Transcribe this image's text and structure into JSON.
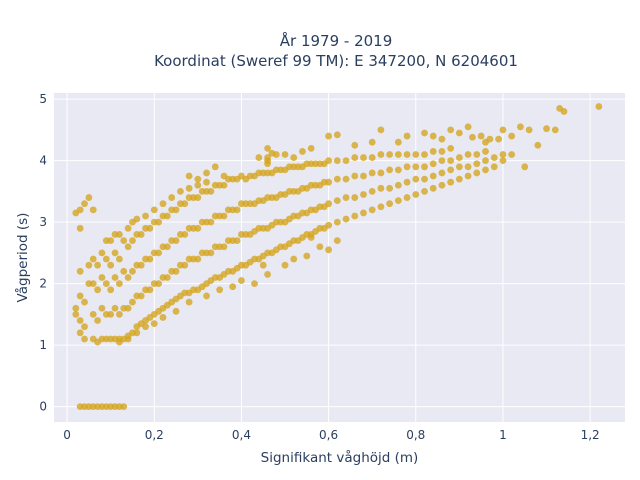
{
  "chart_data": {
    "type": "scatter",
    "title_lines": [
      "År 1979 - 2019",
      "Koordinat (Sweref 99 TM): E 347200, N 6204601"
    ],
    "xlabel": "Signifikant våghöjd (m)",
    "ylabel": "Vågperiod (s)",
    "xlim": [
      -0.03,
      1.28
    ],
    "ylim": [
      -0.25,
      5.1
    ],
    "x_ticks": [
      0,
      0.2,
      0.4,
      0.6,
      0.8,
      1,
      1.2
    ],
    "x_tick_labels": [
      "0",
      "0,2",
      "0,4",
      "0,6",
      "0,8",
      "1",
      "1,2"
    ],
    "y_ticks": [
      0,
      1,
      2,
      3,
      4,
      5
    ],
    "y_tick_labels": [
      "0",
      "1",
      "2",
      "3",
      "4",
      "5"
    ],
    "grid": true,
    "marker_color": "#d4a520",
    "plot_background": "#e8e9f2",
    "points": [
      [
        0.03,
        0
      ],
      [
        0.04,
        0
      ],
      [
        0.05,
        0
      ],
      [
        0.06,
        0
      ],
      [
        0.07,
        0
      ],
      [
        0.08,
        0
      ],
      [
        0.09,
        0
      ],
      [
        0.1,
        0
      ],
      [
        0.11,
        0
      ],
      [
        0.12,
        0
      ],
      [
        0.13,
        0
      ],
      [
        0.02,
        1.6
      ],
      [
        0.02,
        1.5
      ],
      [
        0.03,
        1.2
      ],
      [
        0.03,
        1.4
      ],
      [
        0.03,
        1.8
      ],
      [
        0.03,
        2.2
      ],
      [
        0.03,
        2.9
      ],
      [
        0.03,
        3.2
      ],
      [
        0.04,
        3.3
      ],
      [
        0.05,
        3.4
      ],
      [
        0.06,
        3.2
      ],
      [
        0.02,
        3.15
      ],
      [
        0.04,
        1.1
      ],
      [
        0.04,
        1.3
      ],
      [
        0.04,
        1.7
      ],
      [
        0.05,
        2.0
      ],
      [
        0.05,
        2.3
      ],
      [
        0.06,
        1.1
      ],
      [
        0.06,
        1.5
      ],
      [
        0.06,
        2.0
      ],
      [
        0.06,
        2.4
      ],
      [
        0.07,
        1.05
      ],
      [
        0.07,
        1.4
      ],
      [
        0.07,
        1.9
      ],
      [
        0.07,
        2.3
      ],
      [
        0.08,
        1.1
      ],
      [
        0.08,
        1.6
      ],
      [
        0.08,
        2.1
      ],
      [
        0.08,
        2.5
      ],
      [
        0.09,
        1.1
      ],
      [
        0.09,
        1.5
      ],
      [
        0.09,
        2.0
      ],
      [
        0.09,
        2.4
      ],
      [
        0.09,
        2.7
      ],
      [
        0.1,
        1.1
      ],
      [
        0.1,
        1.5
      ],
      [
        0.1,
        1.9
      ],
      [
        0.1,
        2.3
      ],
      [
        0.1,
        2.7
      ],
      [
        0.11,
        1.1
      ],
      [
        0.11,
        1.6
      ],
      [
        0.11,
        2.1
      ],
      [
        0.11,
        2.5
      ],
      [
        0.11,
        2.8
      ],
      [
        0.12,
        1.1
      ],
      [
        0.12,
        1.5
      ],
      [
        0.12,
        2.0
      ],
      [
        0.12,
        2.4
      ],
      [
        0.12,
        2.8
      ],
      [
        0.13,
        1.1
      ],
      [
        0.13,
        1.6
      ],
      [
        0.13,
        2.2
      ],
      [
        0.13,
        2.7
      ],
      [
        0.14,
        1.15
      ],
      [
        0.14,
        1.6
      ],
      [
        0.14,
        2.1
      ],
      [
        0.14,
        2.6
      ],
      [
        0.14,
        2.9
      ],
      [
        0.15,
        1.2
      ],
      [
        0.15,
        1.7
      ],
      [
        0.15,
        2.2
      ],
      [
        0.15,
        2.7
      ],
      [
        0.15,
        3.0
      ],
      [
        0.16,
        1.3
      ],
      [
        0.16,
        1.8
      ],
      [
        0.16,
        2.3
      ],
      [
        0.16,
        2.8
      ],
      [
        0.16,
        3.05
      ],
      [
        0.17,
        1.35
      ],
      [
        0.17,
        1.8
      ],
      [
        0.17,
        2.3
      ],
      [
        0.17,
        2.8
      ],
      [
        0.18,
        1.4
      ],
      [
        0.18,
        1.9
      ],
      [
        0.18,
        2.4
      ],
      [
        0.18,
        2.9
      ],
      [
        0.18,
        3.1
      ],
      [
        0.19,
        1.45
      ],
      [
        0.19,
        1.9
      ],
      [
        0.19,
        2.4
      ],
      [
        0.19,
        2.9
      ],
      [
        0.2,
        1.5
      ],
      [
        0.2,
        2.0
      ],
      [
        0.2,
        2.5
      ],
      [
        0.2,
        3.0
      ],
      [
        0.2,
        3.2
      ],
      [
        0.21,
        1.55
      ],
      [
        0.21,
        2.0
      ],
      [
        0.21,
        2.5
      ],
      [
        0.21,
        3.0
      ],
      [
        0.22,
        1.6
      ],
      [
        0.22,
        2.1
      ],
      [
        0.22,
        2.6
      ],
      [
        0.22,
        3.1
      ],
      [
        0.22,
        3.3
      ],
      [
        0.23,
        1.65
      ],
      [
        0.23,
        2.1
      ],
      [
        0.23,
        2.6
      ],
      [
        0.23,
        3.1
      ],
      [
        0.24,
        1.7
      ],
      [
        0.24,
        2.2
      ],
      [
        0.24,
        2.7
      ],
      [
        0.24,
        3.2
      ],
      [
        0.24,
        3.4
      ],
      [
        0.25,
        1.75
      ],
      [
        0.25,
        2.2
      ],
      [
        0.25,
        2.7
      ],
      [
        0.25,
        3.2
      ],
      [
        0.26,
        1.8
      ],
      [
        0.26,
        2.3
      ],
      [
        0.26,
        2.8
      ],
      [
        0.26,
        3.3
      ],
      [
        0.26,
        3.5
      ],
      [
        0.27,
        1.85
      ],
      [
        0.27,
        2.3
      ],
      [
        0.27,
        2.8
      ],
      [
        0.27,
        3.3
      ],
      [
        0.28,
        1.85
      ],
      [
        0.28,
        2.4
      ],
      [
        0.28,
        2.9
      ],
      [
        0.28,
        3.4
      ],
      [
        0.28,
        3.55
      ],
      [
        0.29,
        1.9
      ],
      [
        0.29,
        2.4
      ],
      [
        0.29,
        2.9
      ],
      [
        0.29,
        3.4
      ],
      [
        0.3,
        1.9
      ],
      [
        0.3,
        2.4
      ],
      [
        0.3,
        2.9
      ],
      [
        0.3,
        3.4
      ],
      [
        0.3,
        3.6
      ],
      [
        0.31,
        1.95
      ],
      [
        0.31,
        2.5
      ],
      [
        0.31,
        3.0
      ],
      [
        0.31,
        3.5
      ],
      [
        0.32,
        2.0
      ],
      [
        0.32,
        2.5
      ],
      [
        0.32,
        3.0
      ],
      [
        0.32,
        3.5
      ],
      [
        0.32,
        3.65
      ],
      [
        0.33,
        2.05
      ],
      [
        0.33,
        2.5
      ],
      [
        0.33,
        3.0
      ],
      [
        0.33,
        3.5
      ],
      [
        0.34,
        2.1
      ],
      [
        0.34,
        2.6
      ],
      [
        0.34,
        3.1
      ],
      [
        0.34,
        3.6
      ],
      [
        0.35,
        2.1
      ],
      [
        0.35,
        2.6
      ],
      [
        0.35,
        3.1
      ],
      [
        0.35,
        3.6
      ],
      [
        0.36,
        2.15
      ],
      [
        0.36,
        2.6
      ],
      [
        0.36,
        3.1
      ],
      [
        0.36,
        3.6
      ],
      [
        0.36,
        3.75
      ],
      [
        0.37,
        2.2
      ],
      [
        0.37,
        2.7
      ],
      [
        0.37,
        3.2
      ],
      [
        0.37,
        3.7
      ],
      [
        0.38,
        2.2
      ],
      [
        0.38,
        2.7
      ],
      [
        0.38,
        3.2
      ],
      [
        0.38,
        3.7
      ],
      [
        0.39,
        2.25
      ],
      [
        0.39,
        2.7
      ],
      [
        0.39,
        3.2
      ],
      [
        0.39,
        3.7
      ],
      [
        0.4,
        2.3
      ],
      [
        0.4,
        2.8
      ],
      [
        0.4,
        3.3
      ],
      [
        0.4,
        3.75
      ],
      [
        0.41,
        2.3
      ],
      [
        0.41,
        2.8
      ],
      [
        0.41,
        3.3
      ],
      [
        0.41,
        3.7
      ],
      [
        0.42,
        2.35
      ],
      [
        0.42,
        2.8
      ],
      [
        0.42,
        3.3
      ],
      [
        0.42,
        3.75
      ],
      [
        0.43,
        2.4
      ],
      [
        0.43,
        2.85
      ],
      [
        0.43,
        3.3
      ],
      [
        0.43,
        3.75
      ],
      [
        0.44,
        2.4
      ],
      [
        0.44,
        2.9
      ],
      [
        0.44,
        3.35
      ],
      [
        0.44,
        3.8
      ],
      [
        0.45,
        2.45
      ],
      [
        0.45,
        2.9
      ],
      [
        0.45,
        3.35
      ],
      [
        0.45,
        3.8
      ],
      [
        0.46,
        2.5
      ],
      [
        0.46,
        2.9
      ],
      [
        0.46,
        3.4
      ],
      [
        0.46,
        3.8
      ],
      [
        0.47,
        2.5
      ],
      [
        0.47,
        2.95
      ],
      [
        0.47,
        3.4
      ],
      [
        0.47,
        3.8
      ],
      [
        0.48,
        2.55
      ],
      [
        0.48,
        3.0
      ],
      [
        0.48,
        3.4
      ],
      [
        0.48,
        3.85
      ],
      [
        0.49,
        2.6
      ],
      [
        0.49,
        3.0
      ],
      [
        0.49,
        3.45
      ],
      [
        0.49,
        3.85
      ],
      [
        0.5,
        2.6
      ],
      [
        0.5,
        3.0
      ],
      [
        0.5,
        3.45
      ],
      [
        0.5,
        3.85
      ],
      [
        0.51,
        2.65
      ],
      [
        0.51,
        3.05
      ],
      [
        0.51,
        3.5
      ],
      [
        0.51,
        3.9
      ],
      [
        0.52,
        2.7
      ],
      [
        0.52,
        3.1
      ],
      [
        0.52,
        3.5
      ],
      [
        0.52,
        3.9
      ],
      [
        0.53,
        2.7
      ],
      [
        0.53,
        3.1
      ],
      [
        0.53,
        3.5
      ],
      [
        0.53,
        3.9
      ],
      [
        0.54,
        2.75
      ],
      [
        0.54,
        3.15
      ],
      [
        0.54,
        3.55
      ],
      [
        0.54,
        3.9
      ],
      [
        0.55,
        2.8
      ],
      [
        0.55,
        3.15
      ],
      [
        0.55,
        3.55
      ],
      [
        0.55,
        3.95
      ],
      [
        0.56,
        2.8
      ],
      [
        0.56,
        3.2
      ],
      [
        0.56,
        3.6
      ],
      [
        0.56,
        3.95
      ],
      [
        0.57,
        2.85
      ],
      [
        0.57,
        3.2
      ],
      [
        0.57,
        3.6
      ],
      [
        0.57,
        3.95
      ],
      [
        0.58,
        2.9
      ],
      [
        0.58,
        3.25
      ],
      [
        0.58,
        3.6
      ],
      [
        0.58,
        3.95
      ],
      [
        0.59,
        2.9
      ],
      [
        0.59,
        3.25
      ],
      [
        0.59,
        3.65
      ],
      [
        0.59,
        3.95
      ],
      [
        0.6,
        2.95
      ],
      [
        0.6,
        3.3
      ],
      [
        0.6,
        3.65
      ],
      [
        0.6,
        4.0
      ],
      [
        0.62,
        3.0
      ],
      [
        0.62,
        3.35
      ],
      [
        0.62,
        3.7
      ],
      [
        0.62,
        4.0
      ],
      [
        0.64,
        3.05
      ],
      [
        0.64,
        3.4
      ],
      [
        0.64,
        3.7
      ],
      [
        0.64,
        4.0
      ],
      [
        0.66,
        3.1
      ],
      [
        0.66,
        3.4
      ],
      [
        0.66,
        3.75
      ],
      [
        0.66,
        4.05
      ],
      [
        0.68,
        3.15
      ],
      [
        0.68,
        3.45
      ],
      [
        0.68,
        3.75
      ],
      [
        0.68,
        4.05
      ],
      [
        0.7,
        3.2
      ],
      [
        0.7,
        3.5
      ],
      [
        0.7,
        3.8
      ],
      [
        0.7,
        4.05
      ],
      [
        0.72,
        3.25
      ],
      [
        0.72,
        3.55
      ],
      [
        0.72,
        3.8
      ],
      [
        0.72,
        4.1
      ],
      [
        0.74,
        3.3
      ],
      [
        0.74,
        3.55
      ],
      [
        0.74,
        3.85
      ],
      [
        0.74,
        4.1
      ],
      [
        0.76,
        3.35
      ],
      [
        0.76,
        3.6
      ],
      [
        0.76,
        3.85
      ],
      [
        0.76,
        4.1
      ],
      [
        0.78,
        3.4
      ],
      [
        0.78,
        3.65
      ],
      [
        0.78,
        3.9
      ],
      [
        0.78,
        4.1
      ],
      [
        0.8,
        3.45
      ],
      [
        0.8,
        3.7
      ],
      [
        0.8,
        3.9
      ],
      [
        0.8,
        4.1
      ],
      [
        0.82,
        3.5
      ],
      [
        0.82,
        3.7
      ],
      [
        0.82,
        3.9
      ],
      [
        0.82,
        4.1
      ],
      [
        0.84,
        3.55
      ],
      [
        0.84,
        3.75
      ],
      [
        0.84,
        3.95
      ],
      [
        0.84,
        4.15
      ],
      [
        0.86,
        3.6
      ],
      [
        0.86,
        3.8
      ],
      [
        0.86,
        4.0
      ],
      [
        0.86,
        4.15
      ],
      [
        0.88,
        3.65
      ],
      [
        0.88,
        3.85
      ],
      [
        0.88,
        4.0
      ],
      [
        0.88,
        4.2
      ],
      [
        0.9,
        3.7
      ],
      [
        0.9,
        3.9
      ],
      [
        0.9,
        4.05
      ],
      [
        0.92,
        3.75
      ],
      [
        0.92,
        3.9
      ],
      [
        0.92,
        4.1
      ],
      [
        0.94,
        3.8
      ],
      [
        0.94,
        3.95
      ],
      [
        0.94,
        4.1
      ],
      [
        0.96,
        3.85
      ],
      [
        0.96,
        4.0
      ],
      [
        0.96,
        4.15
      ],
      [
        0.98,
        3.9
      ],
      [
        0.98,
        4.05
      ],
      [
        1.0,
        4.0
      ],
      [
        1.0,
        4.1
      ],
      [
        1.02,
        4.1
      ],
      [
        0.88,
        4.5
      ],
      [
        0.9,
        4.45
      ],
      [
        0.92,
        4.55
      ],
      [
        0.95,
        4.4
      ],
      [
        0.97,
        4.35
      ],
      [
        1.0,
        4.5
      ],
      [
        1.02,
        4.4
      ],
      [
        1.04,
        4.55
      ],
      [
        1.06,
        4.5
      ],
      [
        1.1,
        4.52
      ],
      [
        1.12,
        4.5
      ],
      [
        1.13,
        4.85
      ],
      [
        1.14,
        4.8
      ],
      [
        1.22,
        4.88
      ],
      [
        1.08,
        4.25
      ],
      [
        1.05,
        3.9
      ],
      [
        0.99,
        4.35
      ],
      [
        0.96,
        4.3
      ],
      [
        0.93,
        4.38
      ],
      [
        0.86,
        4.35
      ],
      [
        0.84,
        4.4
      ],
      [
        0.82,
        4.45
      ],
      [
        0.78,
        4.4
      ],
      [
        0.76,
        4.3
      ],
      [
        0.72,
        4.5
      ],
      [
        0.7,
        4.3
      ],
      [
        0.66,
        4.25
      ],
      [
        0.6,
        4.4
      ],
      [
        0.62,
        4.42
      ],
      [
        0.56,
        4.2
      ],
      [
        0.54,
        4.15
      ],
      [
        0.48,
        4.1
      ],
      [
        0.46,
        4.2
      ],
      [
        0.47,
        4.12
      ],
      [
        0.46,
        4.0
      ],
      [
        0.52,
        4.05
      ],
      [
        0.5,
        4.1
      ],
      [
        0.46,
        3.95
      ],
      [
        0.28,
        3.75
      ],
      [
        0.3,
        3.7
      ],
      [
        0.32,
        3.8
      ],
      [
        0.34,
        3.9
      ],
      [
        0.46,
        4.05
      ],
      [
        0.44,
        4.05
      ],
      [
        0.46,
        2.15
      ],
      [
        0.45,
        2.3
      ],
      [
        0.43,
        2.0
      ],
      [
        0.4,
        2.05
      ],
      [
        0.38,
        1.95
      ],
      [
        0.35,
        1.9
      ],
      [
        0.32,
        1.8
      ],
      [
        0.28,
        1.7
      ],
      [
        0.6,
        2.55
      ],
      [
        0.58,
        2.6
      ],
      [
        0.55,
        2.45
      ],
      [
        0.52,
        2.4
      ],
      [
        0.5,
        2.3
      ],
      [
        0.62,
        2.7
      ],
      [
        0.56,
        2.75
      ],
      [
        0.25,
        1.55
      ],
      [
        0.22,
        1.45
      ],
      [
        0.2,
        1.35
      ],
      [
        0.18,
        1.3
      ],
      [
        0.16,
        1.2
      ],
      [
        0.14,
        1.1
      ],
      [
        0.12,
        1.05
      ]
    ]
  }
}
